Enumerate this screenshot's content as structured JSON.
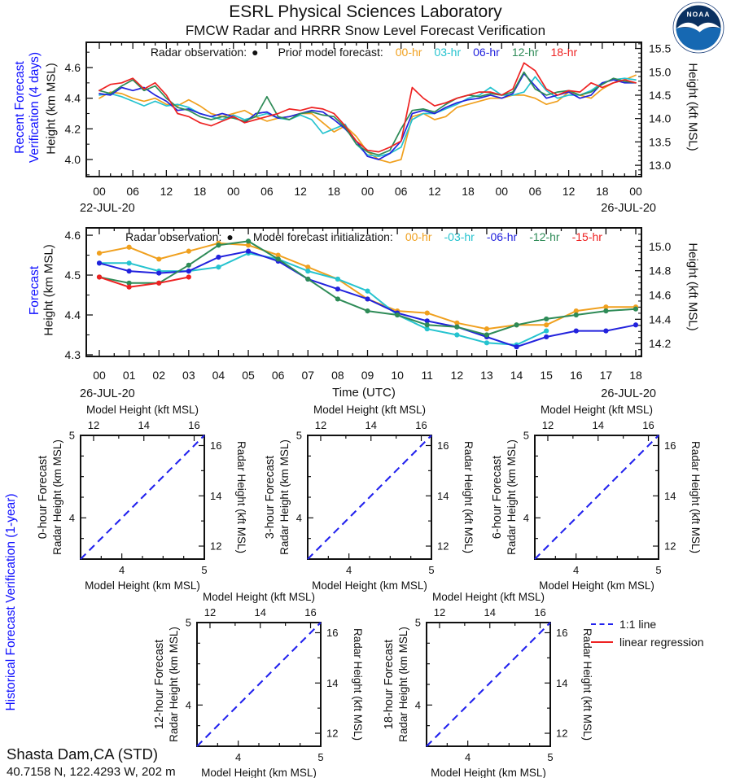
{
  "header": {
    "title": "ESRL Physical Sciences Laboratory",
    "subtitle": "FMCW Radar and HRRR Snow Level Forecast Verification",
    "logo_text": "NOAA"
  },
  "station": {
    "name": "Shasta Dam,CA (STD)",
    "coords": "40.7158 N, 122.4293 W, 202 m"
  },
  "colors": {
    "label_blue": "#0f0fff",
    "axis": "#111111",
    "identity_blue": "#2222ee",
    "regression_red": "#ee2222",
    "hr00": "#f0a01e",
    "hr03": "#25c3cf",
    "hr06": "#2222dd",
    "hr12": "#2e8b57",
    "hr18": "#ee2222"
  },
  "sections": {
    "historical_label": "Historical Forecast Verification (1-year)"
  },
  "bottom_legend": {
    "items": [
      {
        "label": "1:1 line",
        "color": "#2222ee",
        "dashed": true
      },
      {
        "label": "linear regression",
        "color": "#ee2222",
        "dashed": false
      }
    ]
  },
  "chart_data": [
    {
      "id": "recent",
      "type": "line",
      "section_label": [
        "Recent Forecast",
        "Verification (4 days)"
      ],
      "ylabel_left": "Height (km MSL)",
      "ylabel_right": "Height (kft MSL)",
      "date_left": "22-JUL-20",
      "date_right": "26-JUL-20",
      "legend": {
        "radar_label": "Radar observation:",
        "radar_marker": "●",
        "model_label": "Prior model forecast:",
        "entries": [
          {
            "label": "00-hr",
            "color": "#f0a01e"
          },
          {
            "label": "03-hr",
            "color": "#25c3cf"
          },
          {
            "label": "06-hr",
            "color": "#2222dd"
          },
          {
            "label": "12-hr",
            "color": "#2e8b57"
          },
          {
            "label": "18-hr",
            "color": "#ee2222"
          }
        ]
      },
      "x_hours_span": 96,
      "x_step": 2,
      "xtick_labels": [
        "00",
        "06",
        "12",
        "18",
        "00",
        "06",
        "12",
        "18",
        "00",
        "06",
        "12",
        "18",
        "00",
        "06",
        "12",
        "18",
        "00"
      ],
      "ylim_km": [
        3.8885,
        4.7646
      ],
      "yticks_km": [
        4.0,
        4.2,
        4.4,
        4.6
      ],
      "yticks_kft": [
        13.0,
        13.5,
        14.0,
        14.5,
        15.0,
        15.5
      ],
      "markers": false,
      "series": [
        {
          "name": "00-hr",
          "color": "#f0a01e",
          "values": [
            4.4,
            4.44,
            4.43,
            4.4,
            4.38,
            4.4,
            4.36,
            4.35,
            4.39,
            4.35,
            4.3,
            4.28,
            4.3,
            4.32,
            4.28,
            4.25,
            4.27,
            4.28,
            4.3,
            4.3,
            4.24,
            4.18,
            4.22,
            4.15,
            4.05,
            4.0,
            3.98,
            4.0,
            4.28,
            4.3,
            4.26,
            4.28,
            4.34,
            4.36,
            4.38,
            4.4,
            4.4,
            4.42,
            4.42,
            4.4,
            4.36,
            4.38,
            4.44,
            4.42,
            4.4,
            4.46,
            4.5,
            4.52,
            4.55
          ]
        },
        {
          "name": "03-hr",
          "color": "#25c3cf",
          "values": [
            4.42,
            4.43,
            4.41,
            4.38,
            4.35,
            4.38,
            4.35,
            4.36,
            4.34,
            4.3,
            4.28,
            4.26,
            4.29,
            4.26,
            4.28,
            4.3,
            4.27,
            4.26,
            4.29,
            4.26,
            4.17,
            4.2,
            4.23,
            4.1,
            4.03,
            4.02,
            4.04,
            4.08,
            4.26,
            4.3,
            4.3,
            4.33,
            4.36,
            4.4,
            4.42,
            4.47,
            4.42,
            4.42,
            4.44,
            4.54,
            4.45,
            4.4,
            4.42,
            4.42,
            4.45,
            4.5,
            4.52,
            4.53,
            4.52
          ]
        },
        {
          "name": "06-hr",
          "color": "#2222dd",
          "values": [
            4.43,
            4.42,
            4.47,
            4.45,
            4.47,
            4.42,
            4.38,
            4.32,
            4.33,
            4.3,
            4.28,
            4.3,
            4.28,
            4.24,
            4.3,
            4.31,
            4.27,
            4.28,
            4.3,
            4.32,
            4.31,
            4.26,
            4.2,
            4.12,
            4.02,
            4.0,
            4.04,
            4.12,
            4.3,
            4.32,
            4.3,
            4.34,
            4.37,
            4.39,
            4.4,
            4.42,
            4.4,
            4.43,
            4.56,
            4.48,
            4.4,
            4.42,
            4.44,
            4.4,
            4.42,
            4.5,
            4.52,
            4.5,
            4.5
          ]
        },
        {
          "name": "12-hr",
          "color": "#2e8b57",
          "values": [
            4.45,
            4.43,
            4.48,
            4.52,
            4.45,
            4.48,
            4.4,
            4.34,
            4.32,
            4.28,
            4.26,
            4.28,
            4.27,
            4.25,
            4.28,
            4.41,
            4.28,
            4.26,
            4.3,
            4.31,
            4.29,
            4.28,
            4.21,
            4.1,
            4.05,
            4.03,
            4.06,
            4.2,
            4.32,
            4.33,
            4.31,
            4.36,
            4.4,
            4.42,
            4.41,
            4.43,
            4.42,
            4.44,
            4.57,
            4.46,
            4.42,
            4.44,
            4.45,
            4.42,
            4.44,
            4.49,
            4.53,
            4.51,
            4.5
          ]
        },
        {
          "name": "18-hr",
          "color": "#ee2222",
          "values": [
            4.45,
            4.49,
            4.5,
            4.53,
            4.46,
            4.5,
            4.42,
            4.3,
            4.28,
            4.24,
            4.22,
            4.25,
            4.28,
            4.24,
            4.26,
            4.28,
            4.3,
            4.33,
            4.32,
            4.34,
            4.33,
            4.3,
            4.22,
            4.12,
            4.06,
            4.05,
            4.08,
            4.12,
            4.47,
            4.4,
            4.35,
            4.37,
            4.4,
            4.42,
            4.44,
            4.44,
            4.42,
            4.46,
            4.63,
            4.58,
            4.46,
            4.42,
            4.45,
            4.44,
            4.5,
            4.47,
            4.5,
            4.52,
            4.5
          ]
        }
      ]
    },
    {
      "id": "forecast",
      "type": "line",
      "section_label": [
        "Forecast"
      ],
      "xlabel": "Time (UTC)",
      "ylabel_left": "Height (km MSL)",
      "ylabel_right": "Height (kft MSL)",
      "date_left": "26-JUL-20",
      "date_right": "26-JUL-20",
      "legend": {
        "radar_label": "Radar observation:",
        "radar_marker": "●",
        "model_label": "Model forecast initialization:",
        "entries": [
          {
            "label": "00-hr",
            "color": "#f0a01e"
          },
          {
            "label": "-03-hr",
            "color": "#25c3cf"
          },
          {
            "label": "-06-hr",
            "color": "#2222dd"
          },
          {
            "label": "-12-hr",
            "color": "#2e8b57"
          },
          {
            "label": "-15-hr",
            "color": "#ee2222"
          }
        ]
      },
      "x_hours_span": 18,
      "x_step": 1,
      "xtick_labels": [
        "00",
        "01",
        "02",
        "03",
        "04",
        "05",
        "06",
        "07",
        "08",
        "09",
        "10",
        "11",
        "12",
        "13",
        "14",
        "15",
        "16",
        "17",
        "18"
      ],
      "ylim_km": [
        4.2959,
        4.6185
      ],
      "yticks_km": [
        4.3,
        4.4,
        4.5,
        4.6
      ],
      "yticks_kft": [
        14.2,
        14.4,
        14.6,
        14.8,
        15.0
      ],
      "markers": true,
      "series": [
        {
          "name": "00-hr",
          "color": "#f0a01e",
          "values": [
            4.555,
            4.57,
            4.54,
            4.56,
            4.58,
            4.575,
            4.55,
            4.52,
            4.49,
            4.44,
            4.41,
            4.405,
            4.38,
            4.365,
            4.375,
            4.375,
            4.41,
            4.42,
            4.42
          ]
        },
        {
          "name": "-03-hr",
          "color": "#25c3cf",
          "values": [
            4.53,
            4.53,
            4.51,
            4.51,
            4.52,
            4.555,
            4.54,
            4.51,
            4.49,
            4.46,
            4.4,
            4.365,
            4.35,
            4.33,
            4.325,
            4.36
          ]
        },
        {
          "name": "-06-hr",
          "color": "#2222dd",
          "values": [
            4.53,
            4.51,
            4.505,
            4.51,
            4.545,
            4.56,
            4.535,
            4.49,
            4.465,
            4.44,
            4.405,
            4.385,
            4.37,
            4.345,
            4.32,
            4.345,
            4.36,
            4.36,
            4.375
          ]
        },
        {
          "name": "-12-hr",
          "color": "#2e8b57",
          "values": [
            4.495,
            4.48,
            4.48,
            4.525,
            4.575,
            4.585,
            4.54,
            4.49,
            4.44,
            4.41,
            4.4,
            4.375,
            4.37,
            4.35,
            4.375,
            4.39,
            4.4,
            4.41,
            4.415
          ]
        },
        {
          "name": "-15-hr",
          "color": "#ee2222",
          "values": [
            4.495,
            4.47,
            4.48,
            4.495
          ]
        }
      ]
    },
    {
      "id": "scatter-0h",
      "type": "scatter",
      "title": "0-hour Forecast",
      "xlabel_top": "Model Height (kft MSL)",
      "xlabel_bottom": "Model Height (km MSL)",
      "ylabel_left": "Radar Height (km MSL)",
      "ylabel_right": "Radar Height (kft MSL)",
      "xlim_km": [
        3.5,
        5.0
      ],
      "ylim_km": [
        3.5,
        5.0
      ],
      "ticks_km": [
        4,
        5
      ],
      "ticks_kft": [
        12,
        14,
        16
      ],
      "identity_line": true,
      "points": []
    },
    {
      "id": "scatter-3h",
      "type": "scatter",
      "title": "3-hour Forecast",
      "xlabel_top": "Model Height (kft MSL)",
      "xlabel_bottom": "Model Height (km MSL)",
      "ylabel_left": "Radar Height (km MSL)",
      "ylabel_right": "Radar Height (kft MSL)",
      "xlim_km": [
        3.5,
        5.0
      ],
      "ylim_km": [
        3.5,
        5.0
      ],
      "ticks_km": [
        4,
        5
      ],
      "ticks_kft": [
        12,
        14,
        16
      ],
      "identity_line": true,
      "points": []
    },
    {
      "id": "scatter-6h",
      "type": "scatter",
      "title": "6-hour Forecast",
      "xlabel_top": "Model Height (kft MSL)",
      "xlabel_bottom": "Model Height (km MSL)",
      "ylabel_left": "Radar Height (km MSL)",
      "ylabel_right": "Radar Height (kft MSL)",
      "xlim_km": [
        3.5,
        5.0
      ],
      "ylim_km": [
        3.5,
        5.0
      ],
      "ticks_km": [
        4,
        5
      ],
      "ticks_kft": [
        12,
        14,
        16
      ],
      "identity_line": true,
      "points": []
    },
    {
      "id": "scatter-12h",
      "type": "scatter",
      "title": "12-hour Forecast",
      "xlabel_top": "Model Height (kft MSL)",
      "xlabel_bottom": "Model Height (km MSL)",
      "ylabel_left": "Radar Height (km MSL)",
      "ylabel_right": "Radar Height (kft MSL)",
      "xlim_km": [
        3.5,
        5.0
      ],
      "ylim_km": [
        3.5,
        5.0
      ],
      "ticks_km": [
        4,
        5
      ],
      "ticks_kft": [
        12,
        14,
        16
      ],
      "identity_line": true,
      "points": []
    },
    {
      "id": "scatter-18h",
      "type": "scatter",
      "title": "18-hour Forecast",
      "xlabel_top": "Model Height (kft MSL)",
      "xlabel_bottom": "Model Height (km MSL)",
      "ylabel_left": "Radar Height (km MSL)",
      "ylabel_right": "Radar Height (kft MSL)",
      "xlim_km": [
        3.5,
        5.0
      ],
      "ylim_km": [
        3.5,
        5.0
      ],
      "ticks_km": [
        4,
        5
      ],
      "ticks_kft": [
        12,
        14,
        16
      ],
      "identity_line": true,
      "points": []
    }
  ]
}
